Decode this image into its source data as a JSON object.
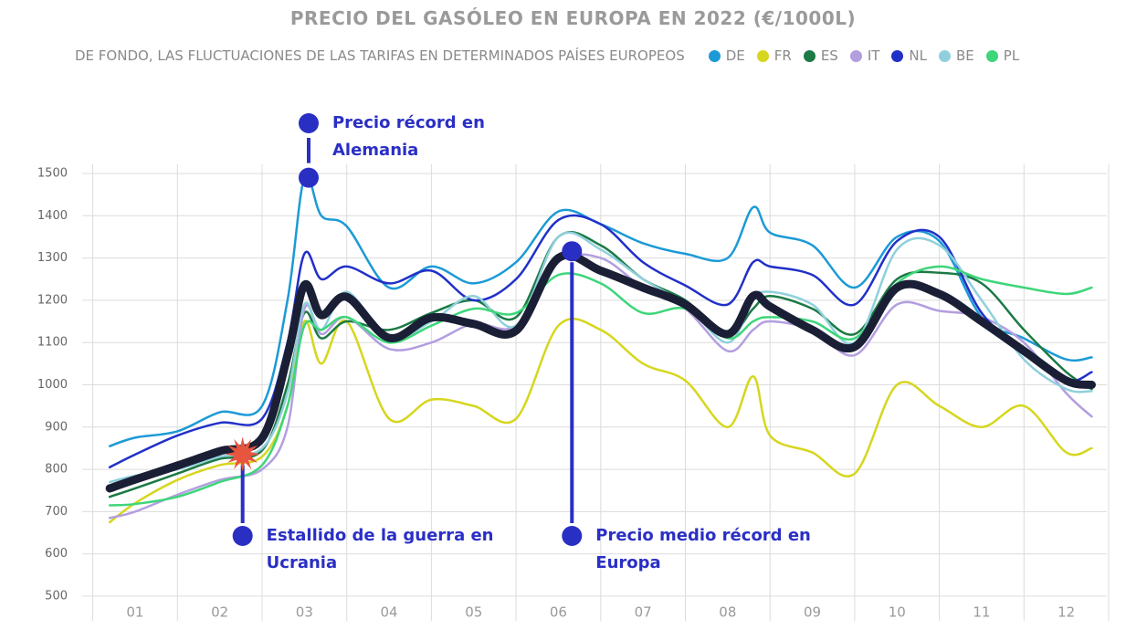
{
  "chart_data": {
    "type": "line",
    "title": "PRECIO DEL GASÓLEO EN EUROPA EN 2022 (€/1000L)",
    "subtitle": "DE FONDO, LAS FLUCTUACIONES DE LAS TARIFAS EN DETERMINADOS PAÍSES EUROPEOS",
    "x": [
      0.7,
      1.0,
      1.5,
      2.0,
      2.5,
      2.8,
      3.0,
      3.2,
      3.5,
      4.0,
      4.5,
      5.0,
      5.5,
      6.0,
      6.5,
      7.0,
      7.5,
      8.0,
      8.3,
      8.5,
      9.0,
      9.5,
      10.0,
      10.5,
      11.0,
      11.5,
      12.0,
      12.3
    ],
    "xlim": [
      0.5,
      12.5
    ],
    "xticks": [
      {
        "value": 1,
        "label": "01"
      },
      {
        "value": 2,
        "label": "02"
      },
      {
        "value": 3,
        "label": "03"
      },
      {
        "value": 4,
        "label": "04"
      },
      {
        "value": 5,
        "label": "05"
      },
      {
        "value": 6,
        "label": "06"
      },
      {
        "value": 7,
        "label": "07"
      },
      {
        "value": 8,
        "label": "08"
      },
      {
        "value": 9,
        "label": "09"
      },
      {
        "value": 10,
        "label": "10"
      },
      {
        "value": 11,
        "label": "11"
      },
      {
        "value": 12,
        "label": "12"
      }
    ],
    "ylim": [
      500,
      1500
    ],
    "yticks": [
      500,
      600,
      700,
      800,
      900,
      1000,
      1100,
      1200,
      1300,
      1400,
      1500
    ],
    "grid": true,
    "series": [
      {
        "name": "DE",
        "color": "#1c9ad6",
        "values": [
          855,
          875,
          890,
          935,
          950,
          1200,
          1490,
          1400,
          1375,
          1230,
          1280,
          1240,
          1290,
          1410,
          1380,
          1335,
          1310,
          1300,
          1420,
          1360,
          1330,
          1230,
          1350,
          1340,
          1160,
          1110,
          1060,
          1065
        ]
      },
      {
        "name": "FR",
        "color": "#d6d61e",
        "values": [
          675,
          720,
          775,
          810,
          830,
          950,
          1150,
          1050,
          1150,
          920,
          965,
          950,
          920,
          1140,
          1130,
          1050,
          1010,
          900,
          1020,
          880,
          840,
          790,
          1000,
          950,
          900,
          950,
          840,
          850
        ]
      },
      {
        "name": "ES",
        "color": "#1b7a45",
        "values": [
          735,
          755,
          790,
          825,
          845,
          1000,
          1170,
          1110,
          1150,
          1130,
          1170,
          1200,
          1160,
          1350,
          1330,
          1250,
          1200,
          1120,
          1180,
          1210,
          1180,
          1120,
          1250,
          1265,
          1240,
          1130,
          1030,
          990
        ]
      },
      {
        "name": "IT",
        "color": "#b39ee0",
        "values": [
          685,
          700,
          740,
          775,
          800,
          900,
          1180,
          1120,
          1160,
          1085,
          1100,
          1145,
          1140,
          1290,
          1300,
          1230,
          1180,
          1080,
          1130,
          1150,
          1130,
          1070,
          1190,
          1175,
          1160,
          1100,
          980,
          925
        ]
      },
      {
        "name": "NL",
        "color": "#2130c8",
        "values": [
          805,
          835,
          880,
          910,
          920,
          1100,
          1310,
          1250,
          1280,
          1240,
          1270,
          1200,
          1250,
          1390,
          1380,
          1290,
          1235,
          1190,
          1290,
          1280,
          1260,
          1190,
          1340,
          1350,
          1170,
          1080,
          1010,
          1030
        ]
      },
      {
        "name": "BE",
        "color": "#8fd0dc",
        "values": [
          770,
          785,
          800,
          830,
          850,
          980,
          1190,
          1130,
          1220,
          1110,
          1150,
          1210,
          1140,
          1350,
          1320,
          1250,
          1190,
          1100,
          1200,
          1220,
          1190,
          1100,
          1320,
          1330,
          1200,
          1060,
          990,
          985
        ]
      },
      {
        "name": "PL",
        "color": "#3dd67a",
        "values": [
          715,
          718,
          735,
          770,
          810,
          950,
          1140,
          1130,
          1160,
          1100,
          1140,
          1180,
          1170,
          1260,
          1240,
          1170,
          1180,
          1110,
          1150,
          1160,
          1150,
          1110,
          1240,
          1280,
          1250,
          1230,
          1215,
          1230
        ]
      }
    ],
    "highlight": {
      "color": "#1a1f36",
      "values": [
        755,
        776,
        809,
        843,
        874,
        1068,
        1236,
        1165,
        1208,
        1111,
        1159,
        1144,
        1128,
        1300,
        1270,
        1230,
        1190,
        1120,
        1210,
        1185,
        1130,
        1090,
        1230,
        1215,
        1150,
        1080,
        1010,
        1000
      ]
    },
    "annotations": [
      {
        "text": "Precio récord en Alemania",
        "x": 3.05,
        "y": 1490,
        "marker": "dot",
        "label_side": "above"
      },
      {
        "text": "Estallido de la guerra en Ucrania",
        "x": 2.27,
        "y": 836,
        "marker": "star",
        "label_side": "below"
      },
      {
        "text": "Precio medio récord en Europa",
        "x": 6.16,
        "y": 1316,
        "marker": "dot",
        "label_side": "below"
      }
    ]
  }
}
